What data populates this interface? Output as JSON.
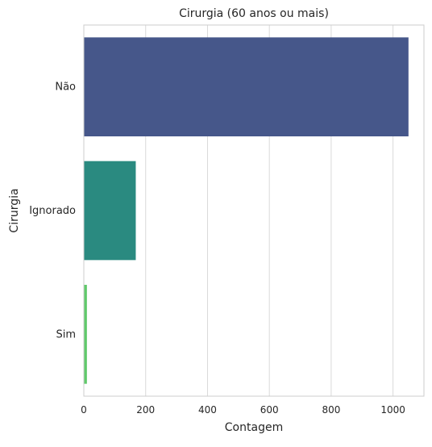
{
  "chart_data": {
    "type": "bar",
    "orientation": "horizontal",
    "title": "Cirurgia (60 anos ou mais)",
    "xlabel": "Contagem",
    "ylabel": "Cirurgia",
    "categories": [
      "Não",
      "Ignorado",
      "Sim"
    ],
    "values": [
      1050,
      168,
      10
    ],
    "colors": [
      "#46578a",
      "#2a8a80",
      "#5fc96a"
    ],
    "xlim": [
      0,
      1100
    ],
    "xticks": [
      0,
      200,
      400,
      600,
      800,
      1000
    ],
    "grid": true,
    "grid_axis": "x"
  }
}
